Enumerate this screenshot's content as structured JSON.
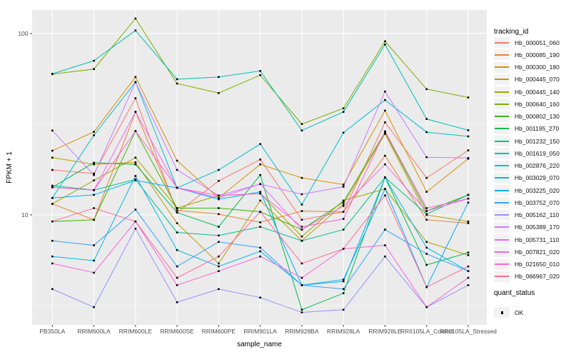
{
  "chart_data": {
    "type": "line",
    "title": "",
    "xlabel": "sample_name",
    "ylabel": "FPKM + 1",
    "y_scale": "log10",
    "y_major_ticks": [
      10,
      100
    ],
    "y_minor_ticks": [
      3.162,
      31.623
    ],
    "ylim": [
      2.35,
      135
    ],
    "grid": true,
    "legend_position": "right",
    "categories": [
      "PB350LA",
      "RRIM600LA",
      "RRIM600LE",
      "RRIM600SE",
      "RRIM600PE",
      "RRIM901LA",
      "RRIM928BA",
      "RRIM928LA",
      "RRIM928LE",
      "RRII105LA_Control",
      "RRII105LA_Stressed"
    ],
    "series": [
      {
        "name": "Hb_000051_060",
        "color": "#F8766D",
        "values": [
          17.7,
          16.9,
          44.0,
          10.3,
          15.4,
          20.2,
          9.4,
          10.4,
          32.4,
          16.0,
          22.7
        ]
      },
      {
        "name": "Hb_000085_190",
        "color": "#EA8331",
        "values": [
          11.5,
          9.4,
          37.0,
          10.6,
          10.1,
          9.1,
          10.5,
          10.4,
          21.2,
          9.4,
          9.0
        ]
      },
      {
        "name": "Hb_000300_180",
        "color": "#D89000",
        "values": [
          22.6,
          28.7,
          57.6,
          19.9,
          12.4,
          19.0,
          16.0,
          14.7,
          37.6,
          13.4,
          20.4
        ]
      },
      {
        "name": "Hb_000445_070",
        "color": "#C09B00",
        "values": [
          20.7,
          19.0,
          19.5,
          9.0,
          5.4,
          12.0,
          7.2,
          11.5,
          28.0,
          10.0,
          9.2
        ]
      },
      {
        "name": "Hb_000445_140",
        "color": "#A3A500",
        "values": [
          11.5,
          15.5,
          20.7,
          10.9,
          12.8,
          13.1,
          7.6,
          12.0,
          13.9,
          7.1,
          6.0
        ]
      },
      {
        "name": "Hb_000640_160",
        "color": "#7CAE00",
        "values": [
          59.7,
          63.7,
          121.0,
          53.0,
          47.0,
          59.0,
          31.7,
          38.7,
          90.6,
          49.4,
          44.4
        ]
      },
      {
        "name": "Hb_000802_130",
        "color": "#39B600",
        "values": [
          9.2,
          9.4,
          29.0,
          10.9,
          10.9,
          10.4,
          8.3,
          11.8,
          28.6,
          10.5,
          12.9
        ]
      },
      {
        "name": "Hb_001195_270",
        "color": "#00BB4E",
        "values": [
          14.2,
          19.4,
          19.0,
          10.3,
          8.6,
          16.6,
          3.0,
          3.7,
          16.1,
          5.3,
          6.2
        ]
      },
      {
        "name": "Hb_001232_150",
        "color": "#00C087",
        "values": [
          14.5,
          13.7,
          15.7,
          8.0,
          7.7,
          8.6,
          7.2,
          8.3,
          16.1,
          10.1,
          12.9
        ]
      },
      {
        "name": "Hb_001619_050",
        "color": "#00C0B2",
        "values": [
          60.0,
          70.8,
          104.0,
          56.0,
          57.6,
          62.2,
          29.2,
          37.0,
          87.0,
          33.8,
          29.3
        ]
      },
      {
        "name": "Hb_002876_220",
        "color": "#00BFD3",
        "values": [
          12.4,
          27.5,
          54.0,
          14.1,
          17.7,
          24.6,
          11.4,
          28.4,
          43.0,
          28.6,
          27.1
        ]
      },
      {
        "name": "Hb_003029_070",
        "color": "#00B8E7",
        "values": [
          5.9,
          5.6,
          16.4,
          6.4,
          5.2,
          6.3,
          4.1,
          4.3,
          16.1,
          6.6,
          4.9
        ]
      },
      {
        "name": "Hb_003225_020",
        "color": "#00ACFC",
        "values": [
          12.4,
          12.9,
          15.5,
          14.1,
          12.2,
          13.4,
          4.1,
          4.4,
          13.9,
          4.0,
          11.7
        ]
      },
      {
        "name": "Hb_003752_070",
        "color": "#35A2FF",
        "values": [
          7.2,
          6.8,
          10.7,
          5.2,
          7.1,
          6.6,
          4.1,
          3.9,
          8.3,
          6.1,
          4.9
        ]
      },
      {
        "name": "Hb_005162_110",
        "color": "#9590FF",
        "values": [
          3.9,
          3.1,
          8.4,
          3.3,
          3.9,
          3.5,
          2.9,
          3.0,
          5.9,
          3.1,
          4.1
        ]
      },
      {
        "name": "Hb_005389_170",
        "color": "#C77CFF",
        "values": [
          29.2,
          16.6,
          54.0,
          17.7,
          12.8,
          14.8,
          13.0,
          14.3,
          47.9,
          20.8,
          20.6
        ]
      },
      {
        "name": "Hb_005731_110",
        "color": "#E76BF3",
        "values": [
          14.2,
          13.7,
          37.0,
          14.1,
          12.4,
          14.8,
          8.3,
          11.2,
          19.0,
          10.5,
          12.3
        ]
      },
      {
        "name": "Hb_007821_020",
        "color": "#FA62DB",
        "values": [
          5.4,
          4.8,
          9.2,
          4.1,
          4.9,
          5.9,
          4.5,
          6.5,
          6.8,
          3.1,
          4.5
        ]
      },
      {
        "name": "Hb_021650_010",
        "color": "#FF61CC",
        "values": [
          14.2,
          13.7,
          29.0,
          14.1,
          12.8,
          13.1,
          8.6,
          9.5,
          28.9,
          10.9,
          12.3
        ]
      },
      {
        "name": "Hb_066967_020",
        "color": "#FF6A98",
        "values": [
          9.2,
          10.9,
          9.2,
          4.5,
          5.9,
          10.4,
          5.4,
          6.5,
          12.8,
          4.0,
          5.2
        ]
      }
    ],
    "point": {
      "shape": "square",
      "color": "#000000"
    },
    "legend": {
      "color_title": "tracking_id",
      "shape_title": "quant_status",
      "shape_items": [
        "OK"
      ]
    }
  },
  "colors": {
    "panel_bg": "#EBEBEB",
    "grid": "#FFFFFF",
    "axis_text": "#4D4D4D",
    "tick_mark": "#333333",
    "legend_key_bg": "#F2F2F2"
  }
}
